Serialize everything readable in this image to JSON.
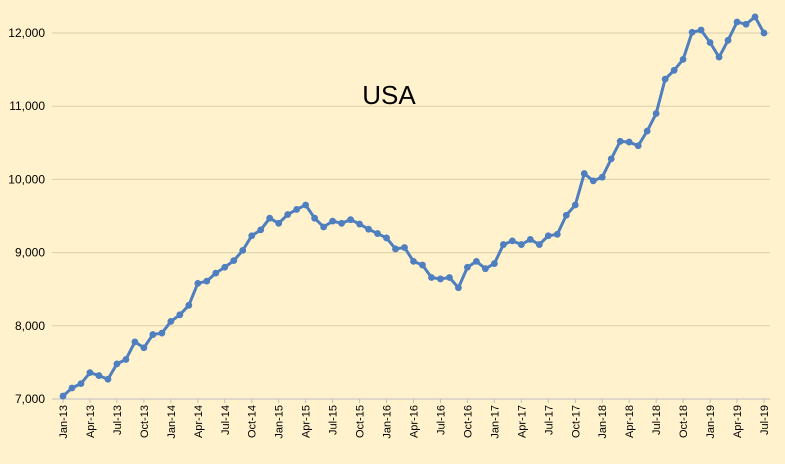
{
  "chart_data": {
    "type": "line",
    "title": "USA",
    "xlabel": "",
    "ylabel": "",
    "ylim": [
      7000,
      12000
    ],
    "yticks": [
      "7,000",
      "8,000",
      "9,000",
      "10,000",
      "11,000",
      "12,000"
    ],
    "grid": "horizontal",
    "categories": [
      "Jan-13",
      "Feb-13",
      "Mar-13",
      "Apr-13",
      "May-13",
      "Jun-13",
      "Jul-13",
      "Aug-13",
      "Sep-13",
      "Oct-13",
      "Nov-13",
      "Dec-13",
      "Jan-14",
      "Feb-14",
      "Mar-14",
      "Apr-14",
      "May-14",
      "Jun-14",
      "Jul-14",
      "Aug-14",
      "Sep-14",
      "Oct-14",
      "Nov-14",
      "Dec-14",
      "Jan-15",
      "Feb-15",
      "Mar-15",
      "Apr-15",
      "May-15",
      "Jun-15",
      "Jul-15",
      "Aug-15",
      "Sep-15",
      "Oct-15",
      "Nov-15",
      "Dec-15",
      "Jan-16",
      "Feb-16",
      "Mar-16",
      "Apr-16",
      "May-16",
      "Jun-16",
      "Jul-16",
      "Aug-16",
      "Sep-16",
      "Oct-16",
      "Nov-16",
      "Dec-16",
      "Jan-17",
      "Feb-17",
      "Mar-17",
      "Apr-17",
      "May-17",
      "Jun-17",
      "Jul-17",
      "Aug-17",
      "Sep-17",
      "Oct-17",
      "Nov-17",
      "Dec-17",
      "Jan-18",
      "Feb-18",
      "Mar-18",
      "Apr-18",
      "May-18",
      "Jun-18",
      "Jul-18",
      "Aug-18",
      "Sep-18",
      "Oct-18",
      "Nov-18",
      "Dec-18",
      "Jan-19",
      "Feb-19",
      "Mar-19",
      "Apr-19",
      "May-19",
      "Jun-19",
      "Jul-19"
    ],
    "tick_labels": [
      "Jan-13",
      "Apr-13",
      "Jul-13",
      "Oct-13",
      "Jan-14",
      "Apr-14",
      "Jul-14",
      "Oct-14",
      "Jan-15",
      "Apr-15",
      "Jul-15",
      "Oct-15",
      "Jan-16",
      "Apr-16",
      "Jul-16",
      "Oct-16",
      "Jan-17",
      "Apr-17",
      "Jul-17",
      "Oct-17",
      "Jan-18",
      "Apr-18",
      "Jul-18",
      "Oct-18",
      "Jan-19",
      "Apr-19",
      "Jul-19"
    ],
    "series": [
      {
        "color": "#4f7fbf",
        "values": [
          7040,
          7150,
          7210,
          7360,
          7320,
          7270,
          7480,
          7540,
          7780,
          7700,
          7880,
          7900,
          8060,
          8150,
          8280,
          8580,
          8610,
          8720,
          8800,
          8890,
          9030,
          9230,
          9310,
          9470,
          9400,
          9520,
          9590,
          9650,
          9470,
          9350,
          9430,
          9400,
          9450,
          9390,
          9320,
          9260,
          9200,
          9050,
          9070,
          8880,
          8830,
          8660,
          8640,
          8660,
          8520,
          8800,
          8880,
          8780,
          8850,
          9110,
          9160,
          9110,
          9180,
          9110,
          9230,
          9250,
          9510,
          9650,
          10080,
          9980,
          10030,
          10280,
          10520,
          10510,
          10460,
          10660,
          10900,
          11370,
          11490,
          11640,
          12010,
          12040,
          11870,
          11670,
          11900,
          12150,
          12120,
          12220,
          12000
        ]
      }
    ]
  }
}
